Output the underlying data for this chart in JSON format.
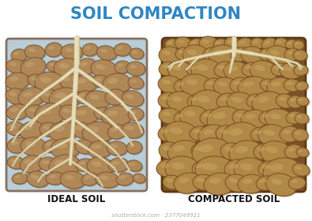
{
  "title": "SOIL COMPACTION",
  "title_color": "#2E86C1",
  "title_fontsize": 15,
  "label_left": "IDEAL SOIL",
  "label_right": "COMPACTED SOIL",
  "label_fontsize": 8.5,
  "label_color": "#111111",
  "background_color": "#ffffff",
  "ideal_bg": "#b8cdd8",
  "compacted_bg": "#7a5228",
  "ideal_border": "#8a7060",
  "compacted_border": "#5a3810",
  "rock_color_ideal": "#b08858",
  "rock_hl_ideal": "#c8a870",
  "rock_dark_ideal": "#7a5530",
  "rock_color_compacted": "#b08848",
  "rock_hl_compacted": "#c8a860",
  "rock_dark_compacted": "#7a5020",
  "root_color": "#e8ddb8",
  "root_outline": "#c8bc90",
  "watermark": "shutterstock.com · 2377049911",
  "watermark_color": "#aaaaaa",
  "watermark_fontsize": 5
}
